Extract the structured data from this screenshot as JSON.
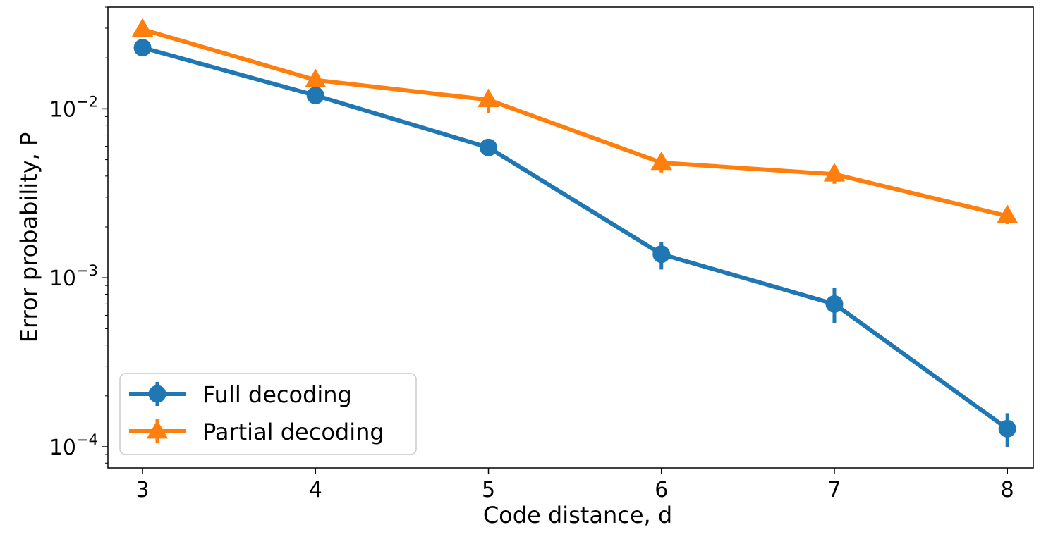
{
  "chart_data": {
    "type": "line",
    "xlabel": "Code distance, d",
    "ylabel": "Error probability, P",
    "x": [
      3,
      4,
      5,
      6,
      7,
      8
    ],
    "xlim": [
      2.8,
      8.15
    ],
    "ylim": [
      7.5e-05,
      0.04
    ],
    "yscale": "log",
    "x_ticks": [
      {
        "value": 3,
        "label": "3"
      },
      {
        "value": 4,
        "label": "4"
      },
      {
        "value": 5,
        "label": "5"
      },
      {
        "value": 6,
        "label": "6"
      },
      {
        "value": 7,
        "label": "7"
      },
      {
        "value": 8,
        "label": "8"
      }
    ],
    "y_ticks": [
      {
        "value": 0.01,
        "base": "10",
        "exp": "−2"
      },
      {
        "value": 0.001,
        "base": "10",
        "exp": "−3"
      },
      {
        "value": 0.0001,
        "base": "10",
        "exp": "−4"
      }
    ],
    "grid": false,
    "legend_position": "lower-left",
    "series": [
      {
        "name": "Full decoding",
        "color": "#1f77b4",
        "marker": "circle",
        "values": [
          0.023,
          0.012,
          0.0059,
          0.00138,
          0.0007,
          0.000128
        ],
        "err_low": [
          0.0215,
          0.0113,
          0.0053,
          0.00112,
          0.00054,
          0.0001
        ],
        "err_high": [
          0.0245,
          0.0127,
          0.0065,
          0.00163,
          0.00087,
          0.000158
        ]
      },
      {
        "name": "Partial decoding",
        "color": "#ff7f0e",
        "marker": "triangle",
        "values": [
          0.0295,
          0.0148,
          0.0113,
          0.0048,
          0.0041,
          0.00232
        ],
        "err_low": [
          0.028,
          0.0141,
          0.0094,
          0.0042,
          0.0036,
          0.00208
        ],
        "err_high": [
          0.031,
          0.0155,
          0.013,
          0.0054,
          0.0046,
          0.00256
        ]
      }
    ]
  }
}
